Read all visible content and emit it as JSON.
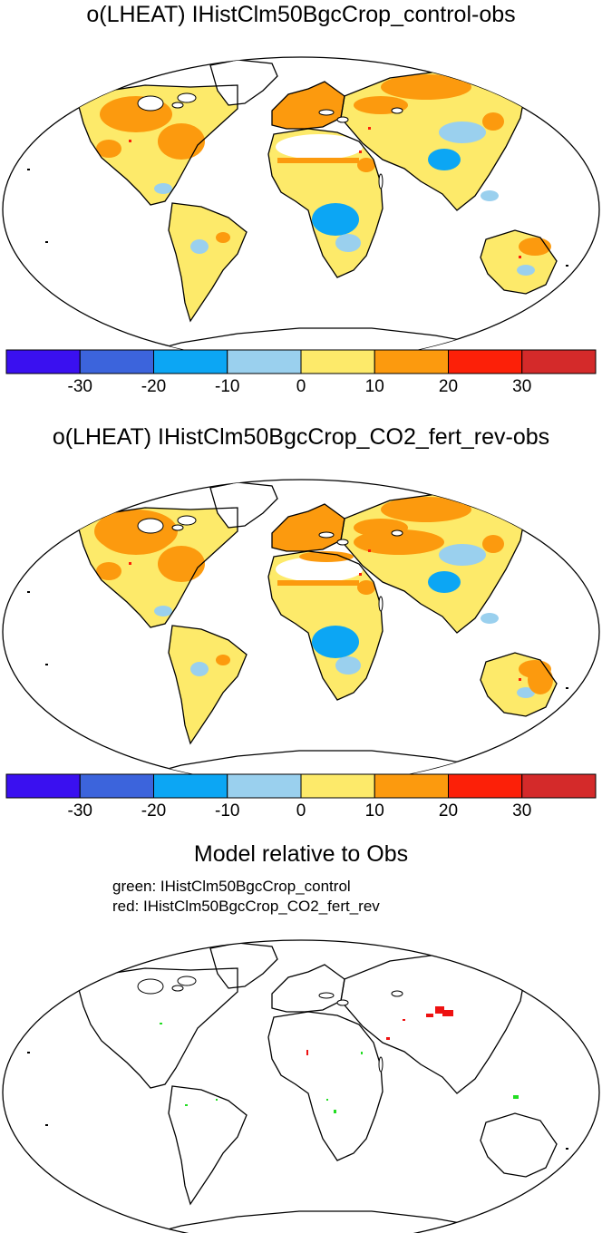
{
  "panels": [
    {
      "title": "o(LHEAT) IHistClm50BgcCrop_control-obs"
    },
    {
      "title": "o(LHEAT) IHistClm50BgcCrop_CO2_fert_rev-obs"
    }
  ],
  "relative_panel": {
    "title": "Model relative to Obs",
    "legend_green": "green: IHistClm50BgcCrop_control",
    "legend_red": "red: IHistClm50BgcCrop_CO2_fert_rev"
  },
  "colorbar": {
    "colors": [
      "#3a10f0",
      "#3c64dc",
      "#0ca6f4",
      "#9ad0ee",
      "#fdea6a",
      "#fc9a0e",
      "#fc2008",
      "#d42a2a"
    ],
    "tick_labels": [
      "-30",
      "-20",
      "-10",
      "0",
      "10",
      "20",
      "30"
    ]
  },
  "colors": {
    "green": "#22dd22",
    "red": "#ee1111"
  }
}
